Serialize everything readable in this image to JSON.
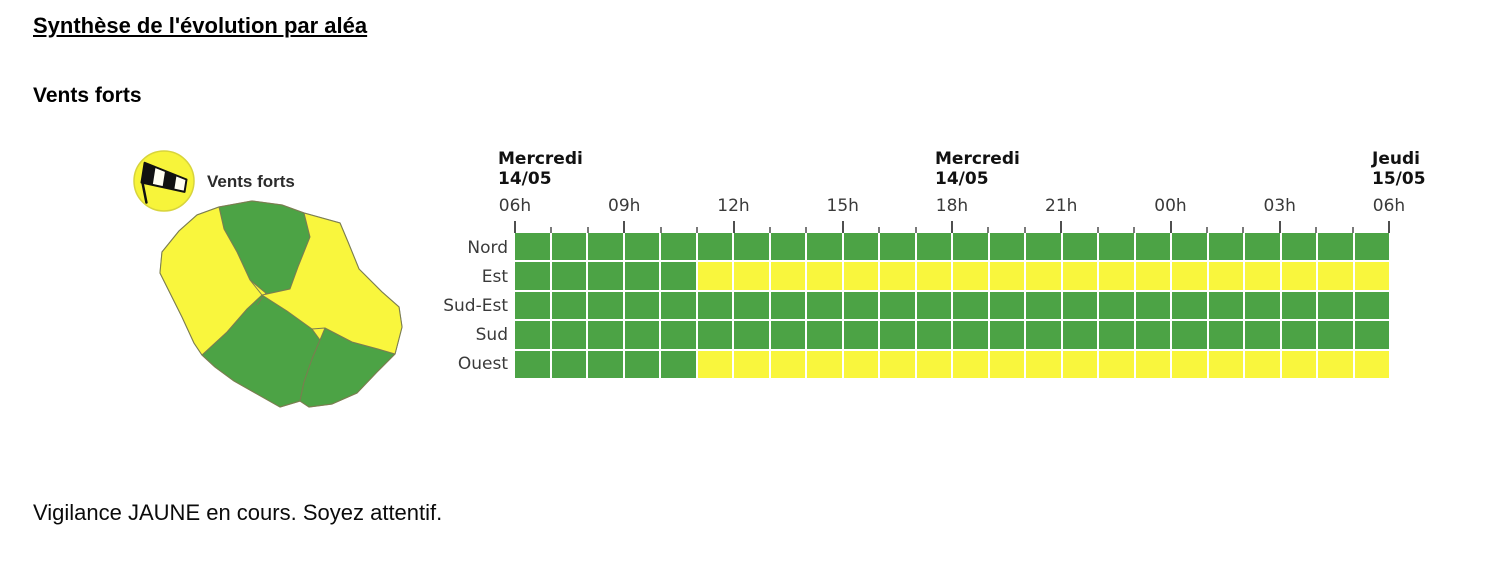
{
  "page": {
    "title": "Synthèse de l'évolution par aléa",
    "hazard_heading": "Vents forts",
    "status_text": "Vigilance JAUNE en cours. Soyez attentif."
  },
  "icon": {
    "name": "windsock-icon",
    "label": "Vents forts"
  },
  "colors": {
    "green": "#4ca345",
    "yellow": "#f9f63d",
    "icon_circle": "#f7f43a",
    "icon_circle_border": "#d8d43c",
    "map_border": "#7b7d50",
    "coast_border": "#8f906a"
  },
  "map": {
    "name": "Carte de vigilance La Réunion",
    "regions": [
      {
        "name": "Nord",
        "color": "green"
      },
      {
        "name": "Est",
        "color": "yellow"
      },
      {
        "name": "Sud-Est",
        "color": "green"
      },
      {
        "name": "Sud",
        "color": "green"
      },
      {
        "name": "Ouest",
        "color": "yellow"
      }
    ]
  },
  "chart_data": {
    "type": "heatmap",
    "x_start": "Mercredi 14/05 06h",
    "x_end": "Jeudi 15/05 06h",
    "hours_total": 24,
    "cell_hours": 1,
    "date_labels": [
      {
        "line1": "Mercredi",
        "line2": "14/05",
        "hour": 0
      },
      {
        "line1": "Mercredi",
        "line2": "14/05",
        "hour": 12
      },
      {
        "line1": "Jeudi",
        "line2": "15/05",
        "hour": 24
      }
    ],
    "x_ticks": [
      {
        "label": "06h",
        "hour": 0
      },
      {
        "label": "09h",
        "hour": 3
      },
      {
        "label": "12h",
        "hour": 6
      },
      {
        "label": "15h",
        "hour": 9
      },
      {
        "label": "18h",
        "hour": 12
      },
      {
        "label": "21h",
        "hour": 15
      },
      {
        "label": "00h",
        "hour": 18
      },
      {
        "label": "03h",
        "hour": 21
      },
      {
        "label": "06h",
        "hour": 24
      }
    ],
    "categories": [
      "Nord",
      "Est",
      "Sud-Est",
      "Sud",
      "Ouest"
    ],
    "rows": [
      {
        "label": "Nord",
        "segments": [
          {
            "color": "green",
            "from_hour": "06h",
            "hours": 24
          }
        ]
      },
      {
        "label": "Est",
        "segments": [
          {
            "color": "green",
            "from_hour": "06h",
            "hours": 5
          },
          {
            "color": "yellow",
            "from_hour": "11h",
            "hours": 19
          }
        ]
      },
      {
        "label": "Sud-Est",
        "segments": [
          {
            "color": "green",
            "from_hour": "06h",
            "hours": 24
          }
        ]
      },
      {
        "label": "Sud",
        "segments": [
          {
            "color": "green",
            "from_hour": "06h",
            "hours": 24
          }
        ]
      },
      {
        "label": "Ouest",
        "segments": [
          {
            "color": "green",
            "from_hour": "06h",
            "hours": 5
          },
          {
            "color": "yellow",
            "from_hour": "11h",
            "hours": 19
          }
        ]
      }
    ]
  }
}
